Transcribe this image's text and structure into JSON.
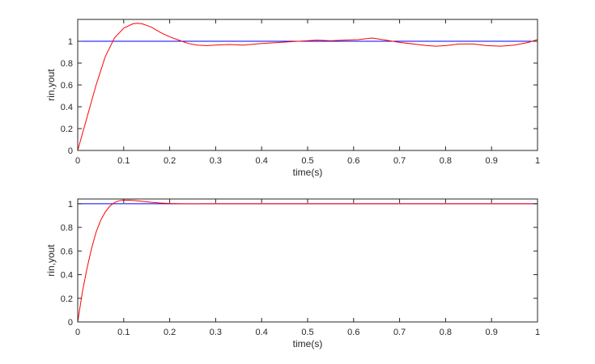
{
  "chart_data": [
    {
      "type": "line",
      "title": "",
      "xlabel": "time(s)",
      "ylabel": "rin,yout",
      "xlim": [
        0,
        1
      ],
      "ylim": [
        0,
        1.2
      ],
      "xticks": [
        0,
        0.1,
        0.2,
        0.3,
        0.4,
        0.5,
        0.6,
        0.7,
        0.8,
        0.9,
        1
      ],
      "yticks": [
        0,
        0.2,
        0.4,
        0.6,
        0.8,
        1
      ],
      "grid": false,
      "series": [
        {
          "color": "#0000ff",
          "x": [
            0,
            1
          ],
          "y": [
            1,
            1
          ]
        },
        {
          "color": "#ff0000",
          "x": [
            0,
            0.02,
            0.04,
            0.06,
            0.08,
            0.1,
            0.12,
            0.13,
            0.14,
            0.16,
            0.18,
            0.2,
            0.22,
            0.24,
            0.26,
            0.28,
            0.3,
            0.33,
            0.36,
            0.4,
            0.44,
            0.48,
            0.52,
            0.55,
            0.58,
            0.61,
            0.64,
            0.67,
            0.7,
            0.73,
            0.76,
            0.78,
            0.8,
            0.83,
            0.86,
            0.89,
            0.92,
            0.95,
            0.98,
            1.0
          ],
          "y": [
            0,
            0.3,
            0.6,
            0.86,
            1.03,
            1.12,
            1.16,
            1.165,
            1.16,
            1.13,
            1.08,
            1.04,
            1.01,
            0.98,
            0.965,
            0.96,
            0.965,
            0.97,
            0.965,
            0.98,
            0.99,
            1.0,
            1.01,
            1.005,
            1.01,
            1.015,
            1.03,
            1.01,
            0.99,
            0.975,
            0.96,
            0.955,
            0.96,
            0.975,
            0.975,
            0.96,
            0.955,
            0.965,
            0.99,
            1.015
          ]
        }
      ]
    },
    {
      "type": "line",
      "title": "",
      "xlabel": "time(s)",
      "ylabel": "rin,yout",
      "xlim": [
        0,
        1
      ],
      "ylim": [
        0,
        1.04
      ],
      "xticks": [
        0,
        0.1,
        0.2,
        0.3,
        0.4,
        0.5,
        0.6,
        0.7,
        0.8,
        0.9,
        1
      ],
      "yticks": [
        0,
        0.2,
        0.4,
        0.6,
        0.8,
        1
      ],
      "grid": false,
      "series": [
        {
          "color": "#0000ff",
          "x": [
            0,
            1
          ],
          "y": [
            1,
            1
          ]
        },
        {
          "color": "#ff0000",
          "x": [
            0,
            0.01,
            0.02,
            0.03,
            0.04,
            0.05,
            0.06,
            0.07,
            0.08,
            0.09,
            0.1,
            0.11,
            0.12,
            0.14,
            0.16,
            0.18,
            0.2,
            0.22,
            0.25,
            0.3,
            0.4,
            0.6,
            0.8,
            1.0
          ],
          "y": [
            0,
            0.25,
            0.45,
            0.62,
            0.76,
            0.86,
            0.93,
            0.98,
            1.01,
            1.025,
            1.03,
            1.03,
            1.028,
            1.02,
            1.012,
            1.006,
            1.002,
            1.0,
            0.999,
            1.0,
            1.0,
            1.0,
            1.0,
            1.0
          ]
        }
      ]
    }
  ]
}
